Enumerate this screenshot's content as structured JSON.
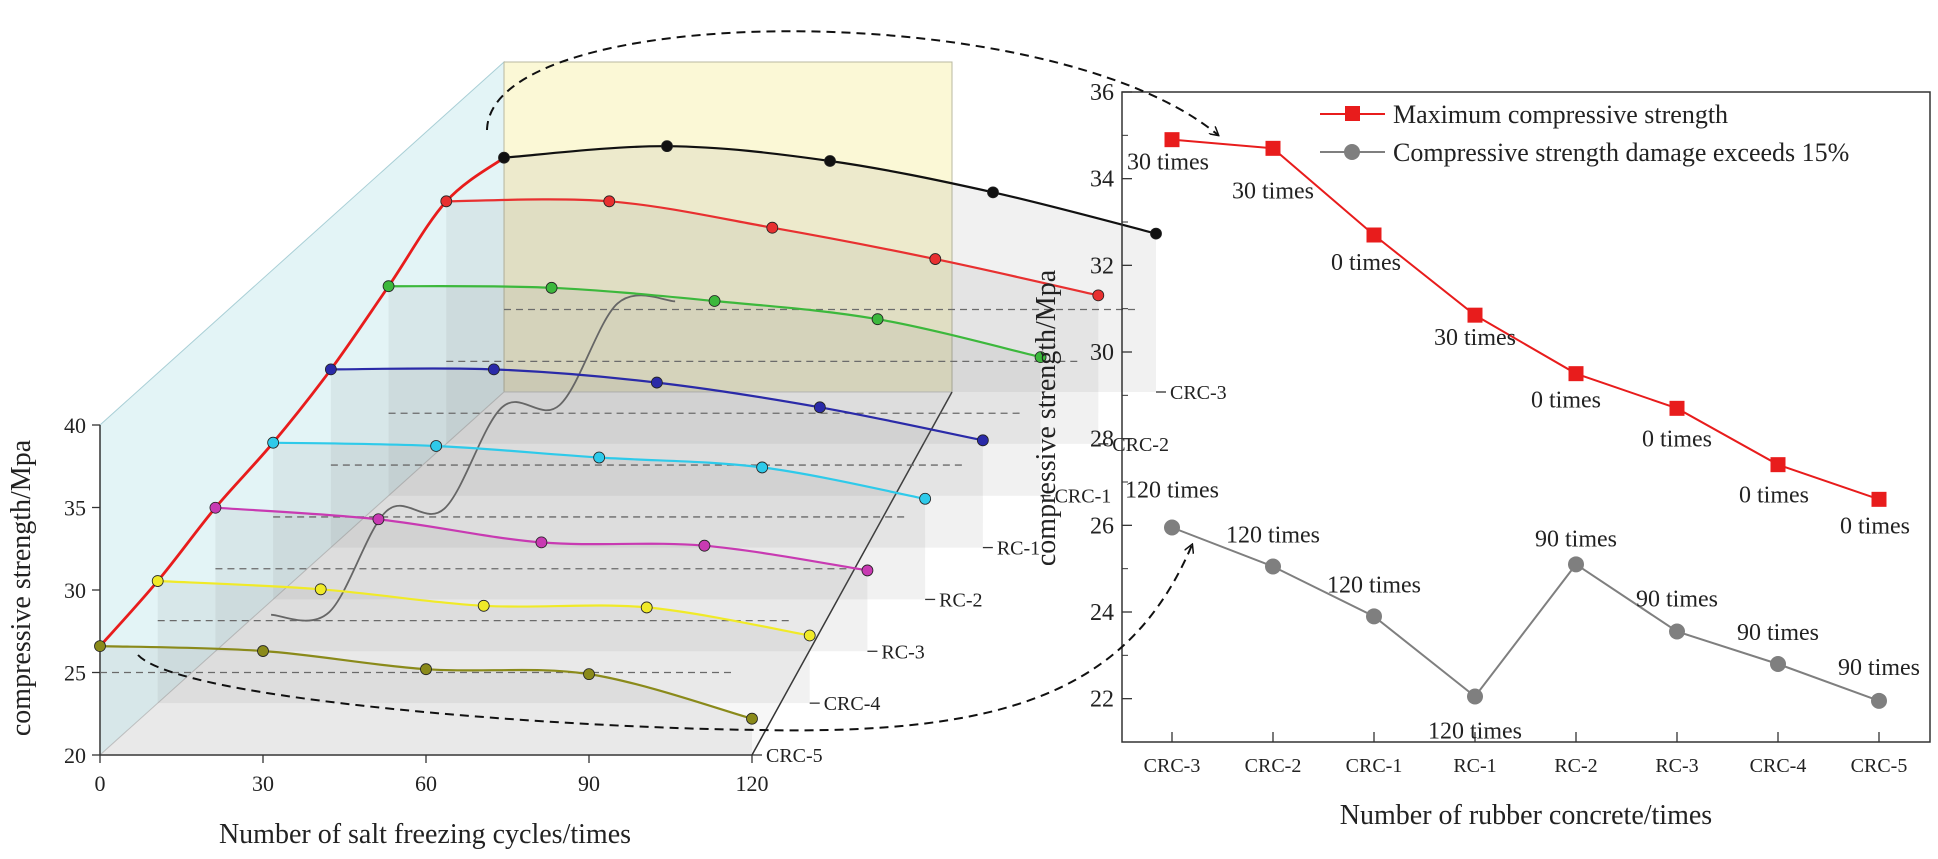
{
  "chart_data": [
    {
      "type": "line",
      "variant": "3d-waterfall",
      "title": "",
      "xlabel": "Number of salt freezing cycles/times",
      "ylabel": "compressive strength/Mpa",
      "x": [
        0,
        30,
        60,
        90,
        120
      ],
      "x_ticks": [
        "0",
        "30",
        "60",
        "90",
        "120"
      ],
      "ylim": [
        20,
        40
      ],
      "y_ticks": [
        "20",
        "25",
        "30",
        "35",
        "40"
      ],
      "categories": [
        "CRC-3",
        "CRC-2",
        "CRC-1",
        "RC-1",
        "RC-2",
        "RC-3",
        "CRC-4",
        "CRC-5"
      ],
      "series": [
        {
          "name": "CRC-3",
          "color": "#111111",
          "values": [
            34.2,
            34.9,
            34.0,
            32.1,
            29.6
          ]
        },
        {
          "name": "CRC-2",
          "color": "#e83030",
          "values": [
            34.7,
            34.7,
            33.1,
            31.2,
            29.0
          ]
        },
        {
          "name": "CRC-1",
          "color": "#3cb83c",
          "values": [
            32.7,
            32.6,
            31.8,
            30.7,
            28.4
          ]
        },
        {
          "name": "RC-1",
          "color": "#2a2aa8",
          "values": [
            30.8,
            30.8,
            30.0,
            28.5,
            26.5
          ]
        },
        {
          "name": "RC-2",
          "color": "#2ecaea",
          "values": [
            29.5,
            29.3,
            28.6,
            28.0,
            26.1
          ]
        },
        {
          "name": "RC-3",
          "color": "#c83ab2",
          "values": [
            28.7,
            28.0,
            26.6,
            26.4,
            24.9
          ]
        },
        {
          "name": "CRC-4",
          "color": "#f0ea28",
          "values": [
            27.4,
            26.9,
            25.9,
            25.8,
            24.1
          ]
        },
        {
          "name": "CRC-5",
          "color": "#8a8a1a",
          "values": [
            26.6,
            26.3,
            25.2,
            24.9,
            22.2
          ]
        }
      ]
    },
    {
      "type": "line",
      "title": "",
      "xlabel": "Number of rubber concrete/times",
      "ylabel": "compressive strength/Mpa",
      "categories": [
        "CRC-3",
        "CRC-2",
        "CRC-1",
        "RC-1",
        "RC-2",
        "RC-3",
        "CRC-4",
        "CRC-5"
      ],
      "ylim": [
        21,
        36
      ],
      "y_ticks": [
        "22",
        "24",
        "26",
        "28",
        "30",
        "32",
        "34",
        "36"
      ],
      "legend_position": "top-right",
      "series": [
        {
          "name": "Maximum compressive strength",
          "color": "#e81c1c",
          "marker": "square",
          "values": [
            34.9,
            34.7,
            32.7,
            30.85,
            29.5,
            28.7,
            27.4,
            26.6
          ],
          "labels": [
            "30 times",
            "30 times",
            "0 times",
            "30 times",
            "0 times",
            "0 times",
            "0 times",
            "0 times"
          ]
        },
        {
          "name": "Compressive strength damage exceeds 15%",
          "color": "#7f7f7f",
          "marker": "circle",
          "values": [
            25.95,
            25.05,
            23.9,
            22.05,
            25.1,
            23.55,
            22.8,
            21.95
          ],
          "labels": [
            "120 times",
            "120 times",
            "120 times",
            "120 times",
            "90 times",
            "90 times",
            "90 times",
            "90 times"
          ]
        }
      ]
    }
  ]
}
